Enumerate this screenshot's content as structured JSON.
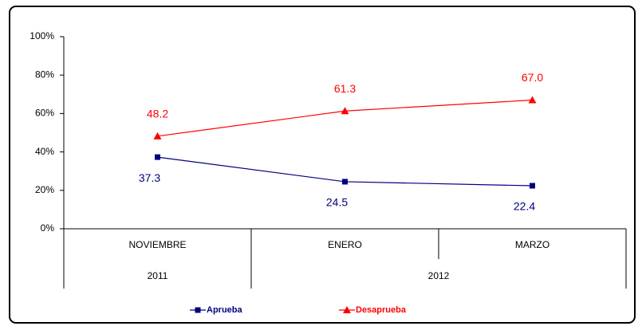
{
  "chart_data": {
    "type": "line",
    "categories": [
      "NOVIEMBRE",
      "ENERO",
      "MARZO"
    ],
    "category_groups": [
      {
        "label": "2011",
        "span": 1
      },
      {
        "label": "2012",
        "span": 2
      }
    ],
    "series": [
      {
        "name": "Aprueba",
        "color": "#000080",
        "marker": "square",
        "label_position": "below",
        "values": [
          37.3,
          24.5,
          22.4
        ],
        "value_labels": [
          "37.3",
          "24.5",
          "22.4"
        ]
      },
      {
        "name": "Desaprueba",
        "color": "#ff0000",
        "marker": "triangle",
        "label_position": "above",
        "values": [
          48.2,
          61.3,
          67.0
        ],
        "value_labels": [
          "48.2",
          "61.3",
          "67.0"
        ]
      }
    ],
    "ylim": [
      0,
      100
    ],
    "yticks": [
      {
        "value": 0,
        "label": "0%"
      },
      {
        "value": 20,
        "label": "20%"
      },
      {
        "value": 40,
        "label": "40%"
      },
      {
        "value": 60,
        "label": "60%"
      },
      {
        "value": 80,
        "label": "80%"
      },
      {
        "value": 100,
        "label": "100%"
      }
    ],
    "legend": "bottom"
  }
}
